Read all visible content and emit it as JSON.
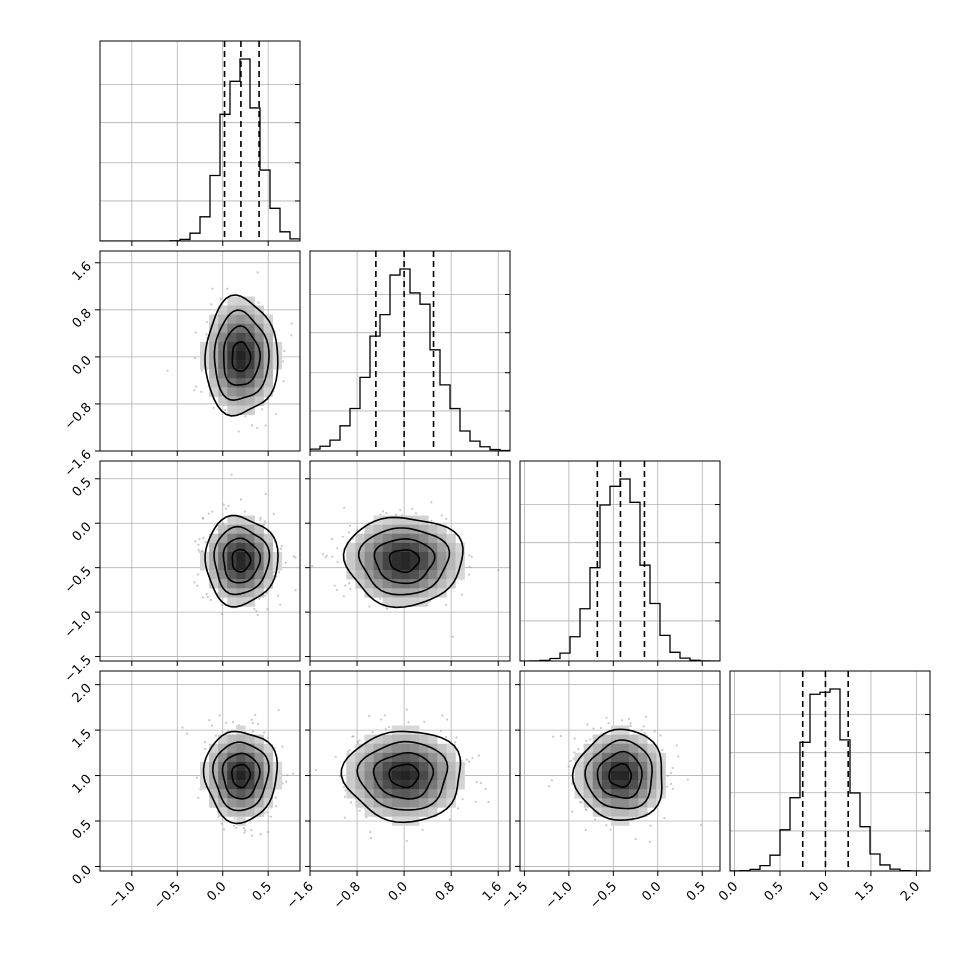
{
  "chart_data": {
    "type": "corner",
    "grid": true,
    "parameters": [
      {
        "index": 0,
        "range": [
          -1.35,
          0.85
        ],
        "ticks": [
          -1.0,
          -0.5,
          0.0,
          0.5
        ],
        "tick_labels": [
          "−1.0",
          "−0.5",
          "0.0",
          "0.5"
        ],
        "mean": 0.2,
        "std": 0.2,
        "quantiles": [
          0.02,
          0.2,
          0.4
        ]
      },
      {
        "index": 1,
        "range": [
          -1.6,
          1.8
        ],
        "ticks": [
          -1.6,
          -0.8,
          0.0,
          0.8,
          1.6
        ],
        "tick_labels": [
          "−1.6",
          "−0.8",
          "0.0",
          "0.8",
          "1.6"
        ],
        "mean": 0.0,
        "std": 0.5,
        "quantiles": [
          -0.48,
          0.0,
          0.5
        ]
      },
      {
        "index": 2,
        "range": [
          -1.55,
          0.7
        ],
        "ticks": [
          -1.5,
          -1.0,
          -0.5,
          0.0,
          0.5
        ],
        "tick_labels": [
          "−1.5",
          "−1.0",
          "−0.5",
          "0.0",
          "0.5"
        ],
        "mean": -0.42,
        "std": 0.25,
        "quantiles": [
          -0.68,
          -0.42,
          -0.15
        ]
      },
      {
        "index": 3,
        "range": [
          -0.05,
          2.15
        ],
        "ticks": [
          0.0,
          0.5,
          1.0,
          1.5,
          2.0
        ],
        "tick_labels": [
          "0.0",
          "0.5",
          "1.0",
          "1.5",
          "2.0"
        ],
        "mean": 1.0,
        "std": 0.25,
        "quantiles": [
          0.75,
          1.0,
          1.25
        ]
      }
    ],
    "contour_levels_sigma": [
      0.5,
      1.0,
      1.5,
      2.0
    ]
  }
}
